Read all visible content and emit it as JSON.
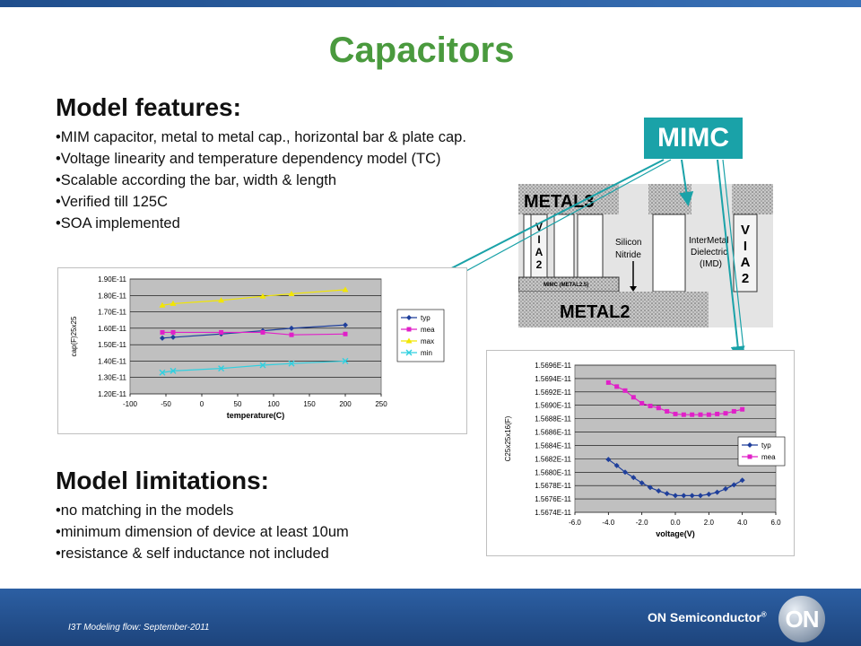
{
  "slide": {
    "title": "Capacitors",
    "features_heading": "Model features:",
    "features": [
      "•MIM capacitor, metal to metal cap., horizontal bar & plate cap.",
      "•Voltage linearity and temperature dependency model (TC)",
      "•Scalable according the bar, width & length",
      "•Verified till 125C",
      "•SOA implemented"
    ],
    "limitations_heading": "Model limitations:",
    "limitations": [
      "•no matching in the models",
      "•minimum dimension of device at least 10um",
      "•resistance & self inductance not included"
    ],
    "badge": "MIMC",
    "footer_text": "I3T Modeling flow: September-2011",
    "brand": "ON Semiconductor",
    "brand_mark": "®",
    "logo_text": "ON"
  },
  "diagram": {
    "metal3": "METAL3",
    "metal2": "METAL2",
    "via_left": "VIA2",
    "via_right": "VIA2",
    "silicon_nitride_1": "Silicon",
    "silicon_nitride_2": "Nitride",
    "imd_1": "InterMetal",
    "imd_2": "Dielectric",
    "imd_3": "(IMD)",
    "mimc_label": "MIMC (METAL2.5)"
  },
  "chart_data": [
    {
      "type": "line",
      "xlabel": "temperature(C)",
      "ylabel": "cap(F)25x25",
      "xlim": [
        -100,
        250
      ],
      "ylim": [
        1.2e-11,
        1.9e-11
      ],
      "xticks": [
        "-100",
        "-50",
        "0",
        "50",
        "100",
        "150",
        "200",
        "250"
      ],
      "yticks": [
        "1.20E-11",
        "1.30E-11",
        "1.40E-11",
        "1.50E-11",
        "1.60E-11",
        "1.70E-11",
        "1.80E-11",
        "1.90E-11"
      ],
      "grid": true,
      "legend": "right",
      "series": [
        {
          "name": "typ",
          "color": "#1f3f9b",
          "marker": "diamond",
          "x": [
            -55,
            -40,
            27,
            85,
            125,
            200
          ],
          "y": [
            1.54e-11,
            1.545e-11,
            1.565e-11,
            1.585e-11,
            1.6e-11,
            1.62e-11
          ]
        },
        {
          "name": "mea",
          "color": "#e020c8",
          "marker": "square",
          "x": [
            -55,
            -40,
            27,
            85,
            125,
            200
          ],
          "y": [
            1.575e-11,
            1.575e-11,
            1.575e-11,
            1.575e-11,
            1.56e-11,
            1.565e-11
          ]
        },
        {
          "name": "max",
          "color": "#f2e600",
          "marker": "triangle",
          "x": [
            -55,
            -40,
            27,
            85,
            125,
            200
          ],
          "y": [
            1.74e-11,
            1.75e-11,
            1.77e-11,
            1.795e-11,
            1.81e-11,
            1.835e-11
          ]
        },
        {
          "name": "min",
          "color": "#30d0e0",
          "marker": "x",
          "x": [
            -55,
            -40,
            27,
            85,
            125,
            200
          ],
          "y": [
            1.33e-11,
            1.34e-11,
            1.355e-11,
            1.375e-11,
            1.385e-11,
            1.4e-11
          ]
        }
      ]
    },
    {
      "type": "line",
      "xlabel": "voltage(V)",
      "ylabel": "C25x25x16(F)",
      "xlim": [
        -6,
        6
      ],
      "ylim": [
        1.5674e-11,
        1.5696e-11
      ],
      "xticks": [
        "-6.0",
        "-4.0",
        "-2.0",
        "0.0",
        "2.0",
        "4.0",
        "6.0"
      ],
      "yticks": [
        "1.5674E-11",
        "1.5676E-11",
        "1.5678E-11",
        "1.5680E-11",
        "1.5682E-11",
        "1.5684E-11",
        "1.5686E-11",
        "1.5688E-11",
        "1.5690E-11",
        "1.5692E-11",
        "1.5694E-11",
        "1.5696E-11"
      ],
      "grid": true,
      "legend": "right",
      "series": [
        {
          "name": "typ",
          "color": "#1f3f9b",
          "marker": "diamond",
          "x": [
            -4,
            -3.5,
            -3,
            -2.5,
            -2,
            -1.5,
            -1,
            -0.5,
            0,
            0.5,
            1,
            1.5,
            2,
            2.5,
            3,
            3.5,
            4
          ],
          "y": [
            1.56819e-11,
            1.5681e-11,
            1.568e-11,
            1.56792e-11,
            1.56784e-11,
            1.56777e-11,
            1.56772e-11,
            1.56768e-11,
            1.56765e-11,
            1.56765e-11,
            1.56765e-11,
            1.56765e-11,
            1.56767e-11,
            1.5677e-11,
            1.56775e-11,
            1.56781e-11,
            1.56788e-11
          ]
        },
        {
          "name": "mea",
          "color": "#e020c8",
          "marker": "square",
          "x": [
            -4,
            -3.5,
            -3,
            -2.5,
            -2,
            -1.5,
            -1,
            -0.5,
            0,
            0.5,
            1,
            1.5,
            2,
            2.5,
            3,
            3.5,
            4
          ],
          "y": [
            1.56934e-11,
            1.56928e-11,
            1.56922e-11,
            1.56912e-11,
            1.56903e-11,
            1.56899e-11,
            1.56896e-11,
            1.56891e-11,
            1.56887e-11,
            1.56886e-11,
            1.56886e-11,
            1.56886e-11,
            1.56886e-11,
            1.56887e-11,
            1.56888e-11,
            1.56891e-11,
            1.56894e-11
          ]
        }
      ]
    }
  ]
}
